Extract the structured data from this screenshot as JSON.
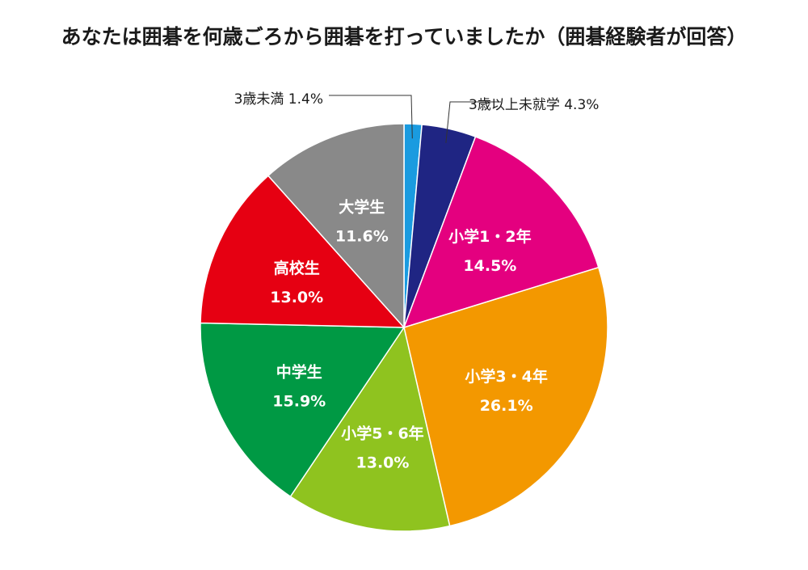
{
  "chart_data": {
    "type": "pie",
    "title": "あなたは囲碁を何歳ごろから囲碁を打っていましたか（囲碁経験者が回答）",
    "start_angle": "12 o'clock",
    "direction": "clockwise",
    "label_suffix": "%",
    "slices": [
      {
        "name": "3歳未満",
        "value": 1.4,
        "color": "#1a9be0",
        "label_position": "outside"
      },
      {
        "name": "3歳以上未就学",
        "value": 4.3,
        "color": "#1f2583",
        "label_position": "outside"
      },
      {
        "name": "小学1・2年",
        "value": 14.5,
        "color": "#e4007f",
        "label_position": "inside"
      },
      {
        "name": "小学3・4年",
        "value": 26.1,
        "color": "#f39800",
        "label_position": "inside"
      },
      {
        "name": "小学5・6年",
        "value": 13.0,
        "color": "#8fc31f",
        "label_position": "inside"
      },
      {
        "name": "中学生",
        "value": 15.9,
        "color": "#009944",
        "label_position": "inside"
      },
      {
        "name": "高校生",
        "value": 13.0,
        "color": "#e60012",
        "label_position": "inside"
      },
      {
        "name": "大学生",
        "value": 11.6,
        "color": "#898989",
        "label_position": "inside"
      }
    ]
  }
}
